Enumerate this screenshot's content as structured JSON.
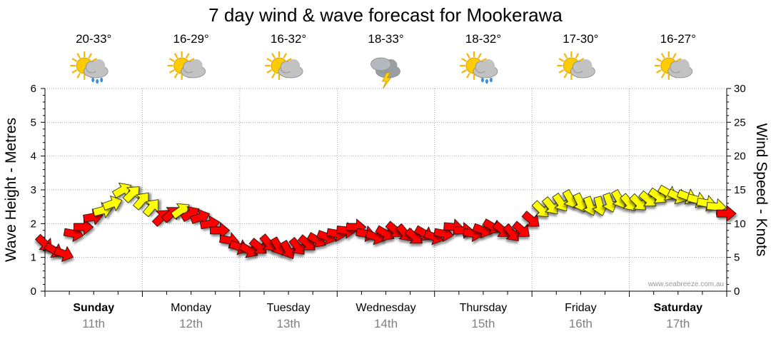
{
  "chart_data": {
    "type": "wind-wave-forecast",
    "title": "7 day wind & wave forecast for Mookerawa",
    "ylabel_left": "Wave Height - Metres",
    "ylabel_right": "Wind Speed - Knots",
    "ylim_left": [
      0,
      6
    ],
    "yticks_left": [
      "0",
      "1",
      "2",
      "3",
      "4",
      "5",
      "6"
    ],
    "ylim_right": [
      0,
      30
    ],
    "yticks_right": [
      "0",
      "5",
      "10",
      "15",
      "20",
      "25",
      "30"
    ],
    "watermark": "www.seabreeze.com.au",
    "days": [
      {
        "name": "Sunday",
        "date": "11th",
        "bold": true,
        "temp": "20-33°",
        "icon": "sun-cloud-rain-icon"
      },
      {
        "name": "Monday",
        "date": "12th",
        "bold": false,
        "temp": "16-29°",
        "icon": "sun-cloud-icon"
      },
      {
        "name": "Tuesday",
        "date": "13th",
        "bold": false,
        "temp": "16-32°",
        "icon": "sun-cloud-icon"
      },
      {
        "name": "Wednesday",
        "date": "14th",
        "bold": false,
        "temp": "18-33°",
        "icon": "storm-icon"
      },
      {
        "name": "Thursday",
        "date": "15th",
        "bold": false,
        "temp": "18-32°",
        "icon": "sun-cloud-rain-icon"
      },
      {
        "name": "Friday",
        "date": "16th",
        "bold": false,
        "temp": "17-30°",
        "icon": "sun-cloud-icon"
      },
      {
        "name": "Saturday",
        "date": "17th",
        "bold": true,
        "temp": "16-27°",
        "icon": "sun-cloud-icon"
      }
    ],
    "wind_series": {
      "name": "Wind Speed (knots)",
      "x_days": [
        0.0,
        0.1,
        0.2,
        0.3,
        0.4,
        0.5,
        0.6,
        0.7,
        0.8,
        0.9,
        1.0,
        1.1,
        1.2,
        1.3,
        1.4,
        1.5,
        1.6,
        1.7,
        1.8,
        1.9,
        2.0,
        2.1,
        2.2,
        2.3,
        2.4,
        2.5,
        2.6,
        2.7,
        2.8,
        2.9,
        3.0,
        3.1,
        3.2,
        3.3,
        3.4,
        3.5,
        3.6,
        3.7,
        3.8,
        3.9,
        4.0,
        4.1,
        4.2,
        4.3,
        4.4,
        4.5,
        4.6,
        4.7,
        4.8,
        4.9,
        5.0,
        5.1,
        5.2,
        5.3,
        5.4,
        5.5,
        5.6,
        5.7,
        5.8,
        5.9,
        6.0,
        6.1,
        6.2,
        6.3,
        6.4,
        6.5,
        6.6,
        6.7,
        6.8,
        6.9,
        7.0
      ],
      "knots": [
        7.0,
        6.0,
        5.5,
        8.5,
        9.5,
        11.0,
        12.0,
        13.0,
        15.0,
        14.5,
        13.5,
        12.5,
        11.0,
        11.5,
        12.0,
        11.5,
        11.0,
        10.0,
        9.0,
        7.5,
        6.5,
        6.0,
        6.5,
        7.0,
        6.5,
        6.0,
        6.5,
        7.0,
        7.5,
        8.0,
        8.5,
        9.0,
        9.5,
        8.5,
        8.0,
        8.5,
        9.0,
        8.5,
        8.0,
        8.5,
        8.0,
        8.5,
        9.5,
        9.0,
        8.5,
        9.0,
        9.5,
        9.0,
        8.5,
        9.0,
        10.5,
        12.0,
        12.5,
        13.0,
        13.5,
        13.0,
        12.5,
        12.5,
        13.0,
        13.5,
        13.0,
        13.0,
        13.5,
        14.0,
        14.5,
        14.0,
        14.0,
        13.5,
        13.0,
        12.5,
        11.5
      ],
      "direction_deg": [
        135,
        120,
        110,
        100,
        90,
        80,
        75,
        70,
        60,
        45,
        40,
        40,
        45,
        50,
        55,
        60,
        70,
        80,
        90,
        100,
        110,
        120,
        130,
        140,
        150,
        150,
        140,
        130,
        120,
        110,
        100,
        95,
        90,
        100,
        110,
        120,
        130,
        140,
        130,
        120,
        110,
        100,
        95,
        90,
        100,
        110,
        120,
        130,
        140,
        130,
        130,
        135,
        140,
        145,
        150,
        155,
        160,
        165,
        160,
        150,
        140,
        135,
        130,
        125,
        120,
        115,
        110,
        105,
        100,
        95,
        90
      ],
      "color_red_below_knots": 12,
      "colors": {
        "low": "#ff0000",
        "high": "#ffff00",
        "outline": "#000000"
      }
    },
    "grid": {
      "color": "#888888",
      "style": "dotted"
    }
  }
}
